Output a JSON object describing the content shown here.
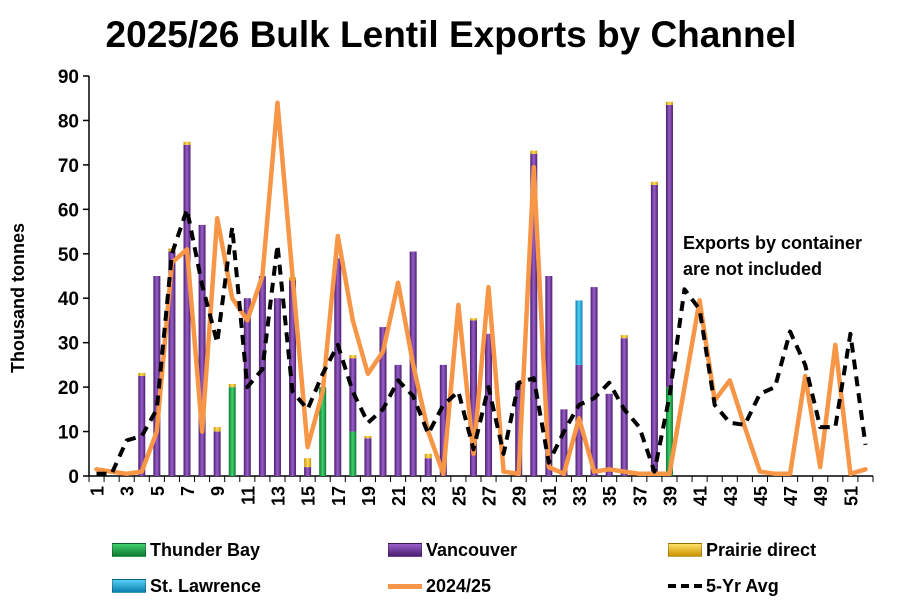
{
  "chart_data": {
    "type": "bar",
    "title": "2025/26 Bulk Lentil Exports by Channel",
    "ylabel": "Thousand tonnes",
    "xlabel": "",
    "ylim": [
      0,
      90
    ],
    "yticks": [
      0,
      10,
      20,
      30,
      40,
      50,
      60,
      70,
      80,
      90
    ],
    "categories": [
      "1",
      "2",
      "3",
      "4",
      "5",
      "6",
      "7",
      "8",
      "9",
      "10",
      "11",
      "12",
      "13",
      "14",
      "15",
      "16",
      "17",
      "18",
      "19",
      "20",
      "21",
      "22",
      "23",
      "24",
      "25",
      "26",
      "27",
      "28",
      "29",
      "30",
      "31",
      "32",
      "33",
      "34",
      "35",
      "36",
      "37",
      "38",
      "39",
      "40",
      "41",
      "42",
      "43",
      "44",
      "45",
      "46",
      "47",
      "48",
      "49",
      "50",
      "51",
      "52"
    ],
    "xtick_labels": [
      "1",
      "3",
      "5",
      "7",
      "9",
      "11",
      "13",
      "15",
      "17",
      "19",
      "21",
      "23",
      "25",
      "27",
      "29",
      "31",
      "33",
      "35",
      "37",
      "39",
      "41",
      "43",
      "45",
      "47",
      "49",
      "51"
    ],
    "stacked": true,
    "series": [
      {
        "name": "Thunder Bay",
        "kind": "bar",
        "color": "#1fae4d",
        "values": [
          0,
          0,
          0,
          0,
          0,
          0,
          0,
          0,
          0,
          20,
          0,
          0,
          0,
          0,
          0,
          20,
          0,
          10,
          0,
          0,
          0,
          0,
          0,
          0,
          0,
          0,
          0,
          0,
          0,
          0,
          0,
          0,
          0,
          0,
          0,
          0,
          0,
          0,
          20,
          null,
          null,
          null,
          null,
          null,
          null,
          null,
          null,
          null,
          null,
          null,
          null,
          null
        ]
      },
      {
        "name": "Vancouver",
        "kind": "bar",
        "color": "#7030a0",
        "values": [
          0,
          0,
          0,
          22.5,
          45,
          50.5,
          74.5,
          56.5,
          10,
          0,
          40,
          45,
          40,
          44,
          2,
          0,
          49,
          16.5,
          8.5,
          33.5,
          25,
          50.5,
          4,
          25,
          0,
          35,
          32,
          0,
          21,
          72.5,
          45,
          15,
          25,
          42.5,
          18.5,
          31,
          0,
          65.5,
          63.5,
          null,
          null,
          null,
          null,
          null,
          null,
          null,
          null,
          null,
          null,
          null,
          null,
          null
        ]
      },
      {
        "name": "Prairie direct",
        "kind": "bar",
        "color": "#ffc000",
        "values": [
          0,
          0,
          0,
          0.7,
          0,
          0.7,
          0.7,
          0,
          1,
          0.7,
          0,
          0,
          0,
          0.7,
          2,
          0,
          0,
          0.7,
          0.5,
          0,
          0,
          0,
          1,
          0,
          0,
          0.5,
          0,
          0,
          0,
          0.7,
          0,
          0,
          0,
          0,
          0,
          0.7,
          0,
          0.7,
          0.7,
          null,
          null,
          null,
          null,
          null,
          null,
          null,
          null,
          null,
          null,
          null,
          null,
          null
        ]
      },
      {
        "name": "St. Lawrence",
        "kind": "bar",
        "color": "#1fb0e0",
        "values": [
          0,
          0,
          0,
          0,
          0,
          0,
          0,
          0,
          0,
          0,
          0,
          0,
          0,
          0,
          0,
          0,
          0,
          0,
          0,
          0,
          0,
          0,
          0,
          0,
          0,
          0,
          0,
          0,
          0,
          0,
          0,
          0,
          14.5,
          0,
          0,
          0,
          0,
          0,
          0,
          null,
          null,
          null,
          null,
          null,
          null,
          null,
          null,
          null,
          null,
          null,
          null,
          null
        ]
      },
      {
        "name": "2024/25",
        "kind": "line",
        "color": "#f79646",
        "values": [
          1.5,
          1,
          0.5,
          1,
          10,
          48,
          51,
          10,
          58,
          40,
          35,
          45,
          84,
          45,
          6.5,
          19,
          54,
          35,
          23,
          28,
          43.5,
          25,
          10,
          0.5,
          38.5,
          5,
          42.5,
          1,
          0.5,
          69.5,
          2,
          0.5,
          13,
          1,
          1.5,
          1,
          0.5,
          0.5,
          0.5,
          20,
          39.5,
          17,
          21.5,
          11,
          1,
          0.5,
          0.5,
          22.5,
          2,
          29.5,
          0.5,
          1.5
        ]
      },
      {
        "name": "5-Yr Avg",
        "kind": "line",
        "dash": true,
        "color": "#000000",
        "values": [
          0.5,
          0.5,
          8,
          9,
          15,
          50,
          60,
          43,
          30,
          56,
          20,
          24,
          52,
          19,
          15,
          23,
          29.5,
          19,
          12,
          15,
          21.5,
          18,
          9.5,
          16,
          19,
          6,
          20,
          5,
          21,
          22,
          3,
          10,
          16,
          17.5,
          21,
          15,
          11,
          1,
          18,
          42,
          37.5,
          16,
          12,
          11.5,
          18.5,
          20,
          32.5,
          25,
          11,
          11,
          32,
          7
        ]
      }
    ],
    "annotations": [
      "Exports by container",
      "are not included"
    ],
    "legend_position": "bottom",
    "grid": false
  },
  "legend": [
    {
      "label": "Thunder Bay",
      "color": "#1fae4d",
      "type": "bar"
    },
    {
      "label": "Vancouver",
      "color": "#7030a0",
      "type": "bar"
    },
    {
      "label": "Prairie direct",
      "color": "#ffc000",
      "type": "bar"
    },
    {
      "label": "St. Lawrence",
      "color": "#1fb0e0",
      "type": "bar"
    },
    {
      "label": "2024/25",
      "color": "#f79646",
      "type": "line"
    },
    {
      "label": "5-Yr Avg",
      "color": "#000000",
      "type": "dash"
    }
  ]
}
